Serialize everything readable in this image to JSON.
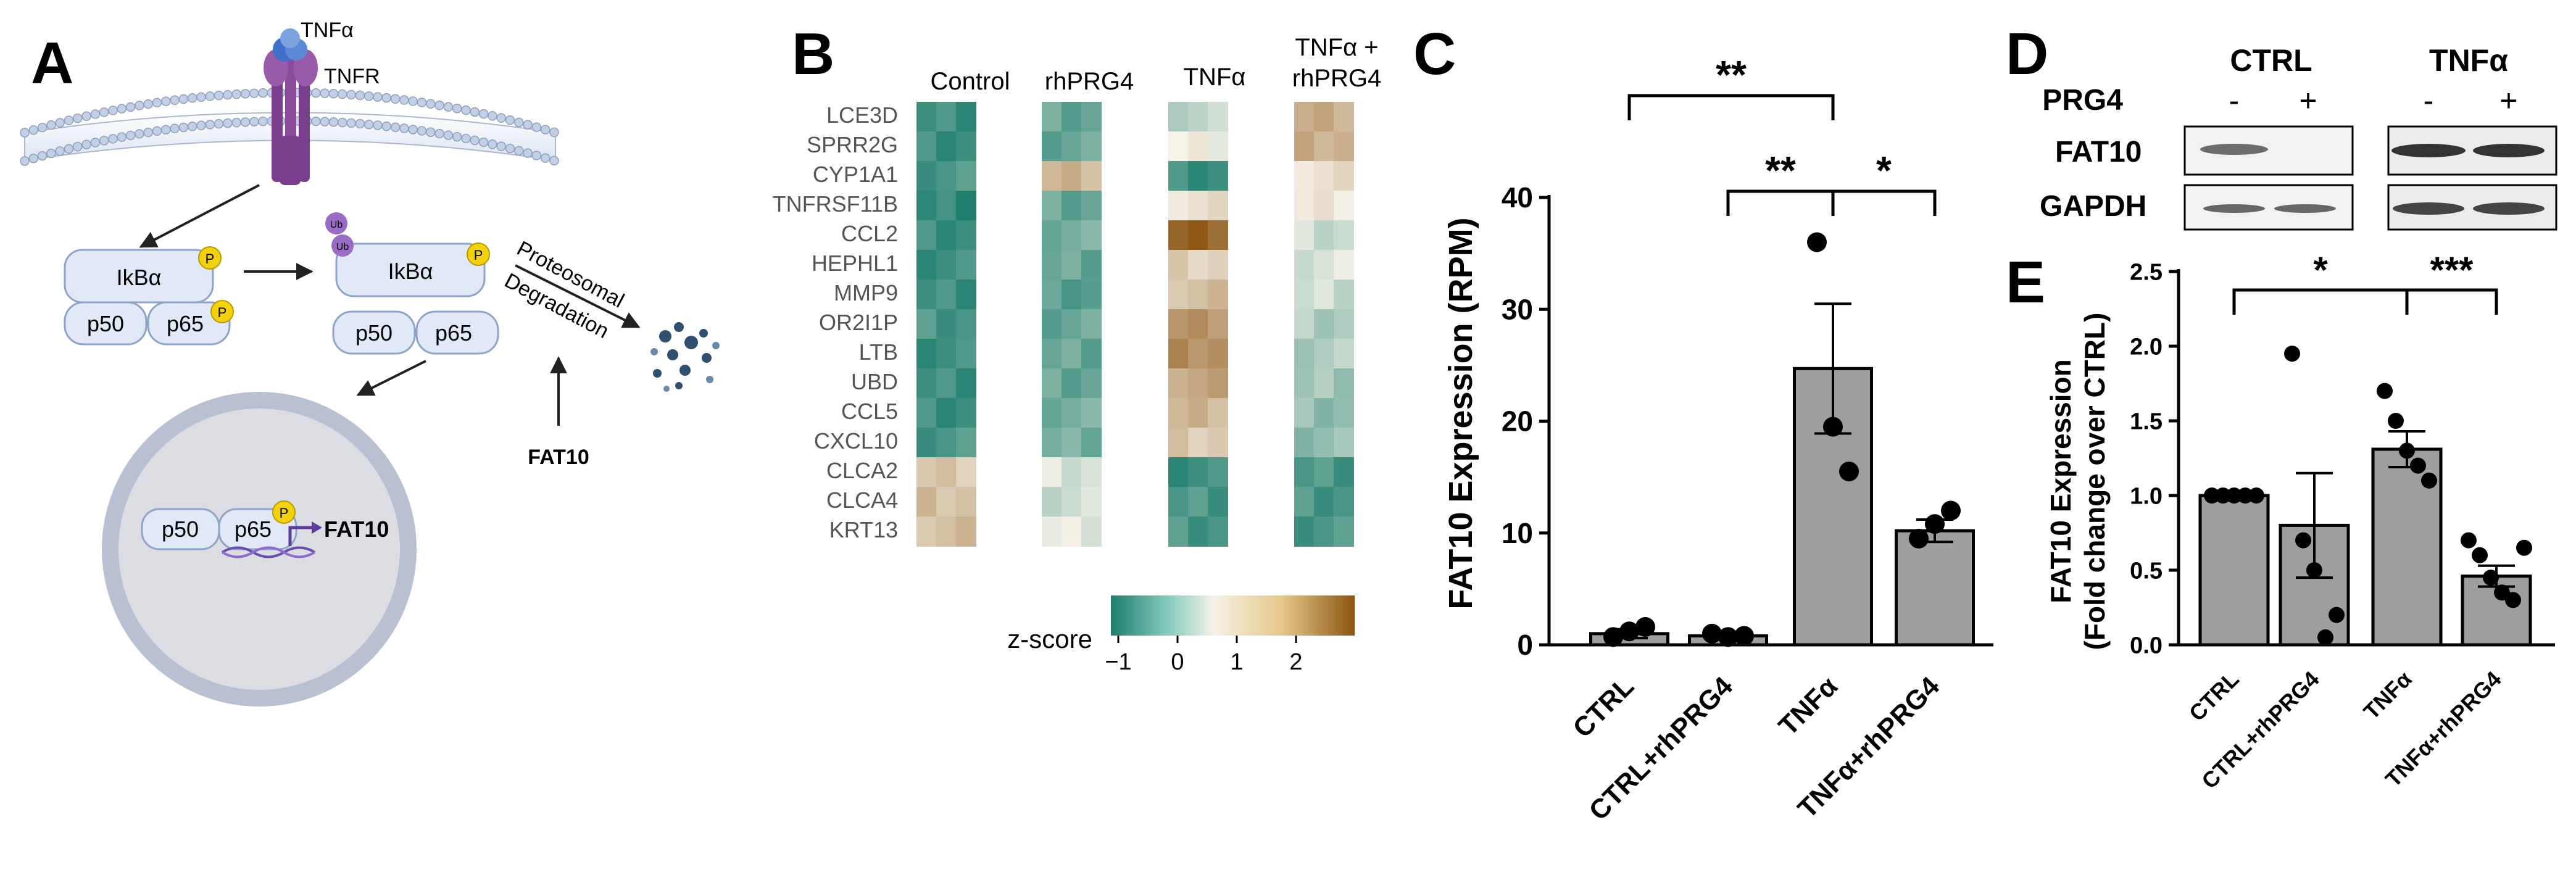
{
  "panels": {
    "a": "A",
    "b": "B",
    "c": "C",
    "d": "D",
    "e": "E"
  },
  "panel_a": {
    "tnfa": "TNFα",
    "tnfr": "TNFR",
    "ikba": "IkBα",
    "p50": "p50",
    "p65": "p65",
    "p": "P",
    "ub": "Ub",
    "proteosomal": "Proteosomal",
    "degradation": "Degradation",
    "fat10": "FAT10",
    "fat10_nucleus": "FAT10"
  },
  "panel_b": {
    "groups": [
      "Control",
      "rhPRG4",
      "TNFα",
      "TNFα +",
      "rhPRG4"
    ],
    "genes": [
      "LCE3D",
      "SPRR2G",
      "CYP1A1",
      "TNFRSF11B",
      "CCL2",
      "HEPHL1",
      "MMP9",
      "OR2I1P",
      "LTB",
      "UBD",
      "CCL5",
      "CXCL10",
      "CLCA2",
      "CLCA4",
      "KRT13"
    ],
    "zscore_label": "z-score",
    "zscore_ticks": [
      "−1",
      "0",
      "1",
      "2"
    ],
    "colors": {
      "low": "#1f7f6d",
      "mid": "#f5f2e8",
      "high": "#8c5410"
    }
  },
  "panel_d": {
    "ctrl": "CTRL",
    "tnfa": "TNFα",
    "prg4": "PRG4",
    "signs": [
      "-",
      "+",
      "-",
      "+"
    ],
    "fat10": "FAT10",
    "gapdh": "GAPDH"
  },
  "chart_data": [
    {
      "type": "bar",
      "panel": "C",
      "categories": [
        "CTRL",
        "CTRL+rhPRG4",
        "TNFα",
        "TNFα+rhPRG4"
      ],
      "values": [
        1.0,
        0.8,
        24.7,
        10.2
      ],
      "errors": [
        0.4,
        0.2,
        5.8,
        1.0
      ],
      "points": [
        [
          0.7,
          1.2,
          1.6
        ],
        [
          1.0,
          0.7,
          0.8
        ],
        [
          36.0,
          19.5,
          15.5
        ],
        [
          9.5,
          10.8,
          12.0
        ]
      ],
      "ylabel": "FAT10 Expression (RPM)",
      "ylim": [
        0,
        40
      ],
      "yticks": [
        "0",
        "10",
        "20",
        "30",
        "40"
      ],
      "significance": [
        {
          "from": 0,
          "to": 2,
          "label": "**"
        },
        {
          "from": 1,
          "to": 2,
          "label": "**"
        },
        {
          "from": 2,
          "to": 3,
          "label": "*"
        }
      ]
    },
    {
      "type": "bar",
      "panel": "E",
      "categories": [
        "CTRL",
        "CTRL+rhPRG4",
        "TNFα",
        "TNFα+rhPRG4"
      ],
      "values": [
        1.0,
        0.8,
        1.31,
        0.46
      ],
      "errors": [
        0.0,
        0.35,
        0.12,
        0.07
      ],
      "points": [
        [
          1.0,
          1.0,
          1.0,
          1.0,
          1.0
        ],
        [
          1.95,
          0.7,
          0.5,
          0.05,
          0.2
        ],
        [
          1.7,
          1.5,
          1.3,
          1.2,
          1.1
        ],
        [
          0.7,
          0.6,
          0.45,
          0.35,
          0.3,
          0.65
        ]
      ],
      "ylabel": "FAT10 Expression",
      "ylabel2": "(Fold change over CTRL)",
      "ylim": [
        0,
        2.5
      ],
      "yticks": [
        "0.0",
        "0.5",
        "1.0",
        "1.5",
        "2.0",
        "2.5"
      ],
      "significance": [
        {
          "from": 0,
          "to": 2,
          "label": "*"
        },
        {
          "from": 2,
          "to": 3,
          "label": "***"
        }
      ]
    }
  ]
}
